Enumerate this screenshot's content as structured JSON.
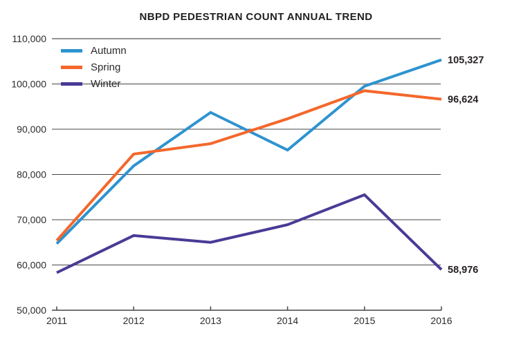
{
  "chart_data": {
    "type": "line",
    "title": "NBPD PEDESTRIAN COUNT ANNUAL TREND",
    "categories": [
      "2011",
      "2012",
      "2013",
      "2014",
      "2015",
      "2016"
    ],
    "series": [
      {
        "name": "Autumn",
        "color": "#2E93D0",
        "values": [
          64700,
          81900,
          93700,
          85400,
          99500,
          105327
        ],
        "end_label": "105,327"
      },
      {
        "name": "Spring",
        "color": "#F4672B",
        "values": [
          65400,
          84500,
          86800,
          92300,
          98500,
          96624
        ],
        "end_label": "96,624"
      },
      {
        "name": "Winter",
        "color": "#4A3A96",
        "values": [
          58300,
          66500,
          65000,
          68900,
          75500,
          58976
        ],
        "end_label": "58,976"
      }
    ],
    "xlabel": "",
    "ylabel": "",
    "ylim": [
      50000,
      110000
    ],
    "yticks": [
      {
        "value": 110000,
        "label": "110,000",
        "major": true
      },
      {
        "value": 100000,
        "label": "100,000",
        "major": true
      },
      {
        "value": 90000,
        "label": "90,000",
        "major": false
      },
      {
        "value": 80000,
        "label": "80,000",
        "major": false
      },
      {
        "value": 70000,
        "label": "70,000",
        "major": false
      },
      {
        "value": 60000,
        "label": "60,000",
        "major": false
      },
      {
        "value": 50000,
        "label": "50,000",
        "major": false
      }
    ],
    "legend_position": "top-left",
    "grid": true
  },
  "colors": {
    "background": "#FFFFFF",
    "grid_major": "#949494",
    "grid_minor": "#454545",
    "axis": "#454545",
    "tick_label": "#2B2B2B",
    "title_text": "#231F20",
    "end_label_text": "#231F20"
  }
}
